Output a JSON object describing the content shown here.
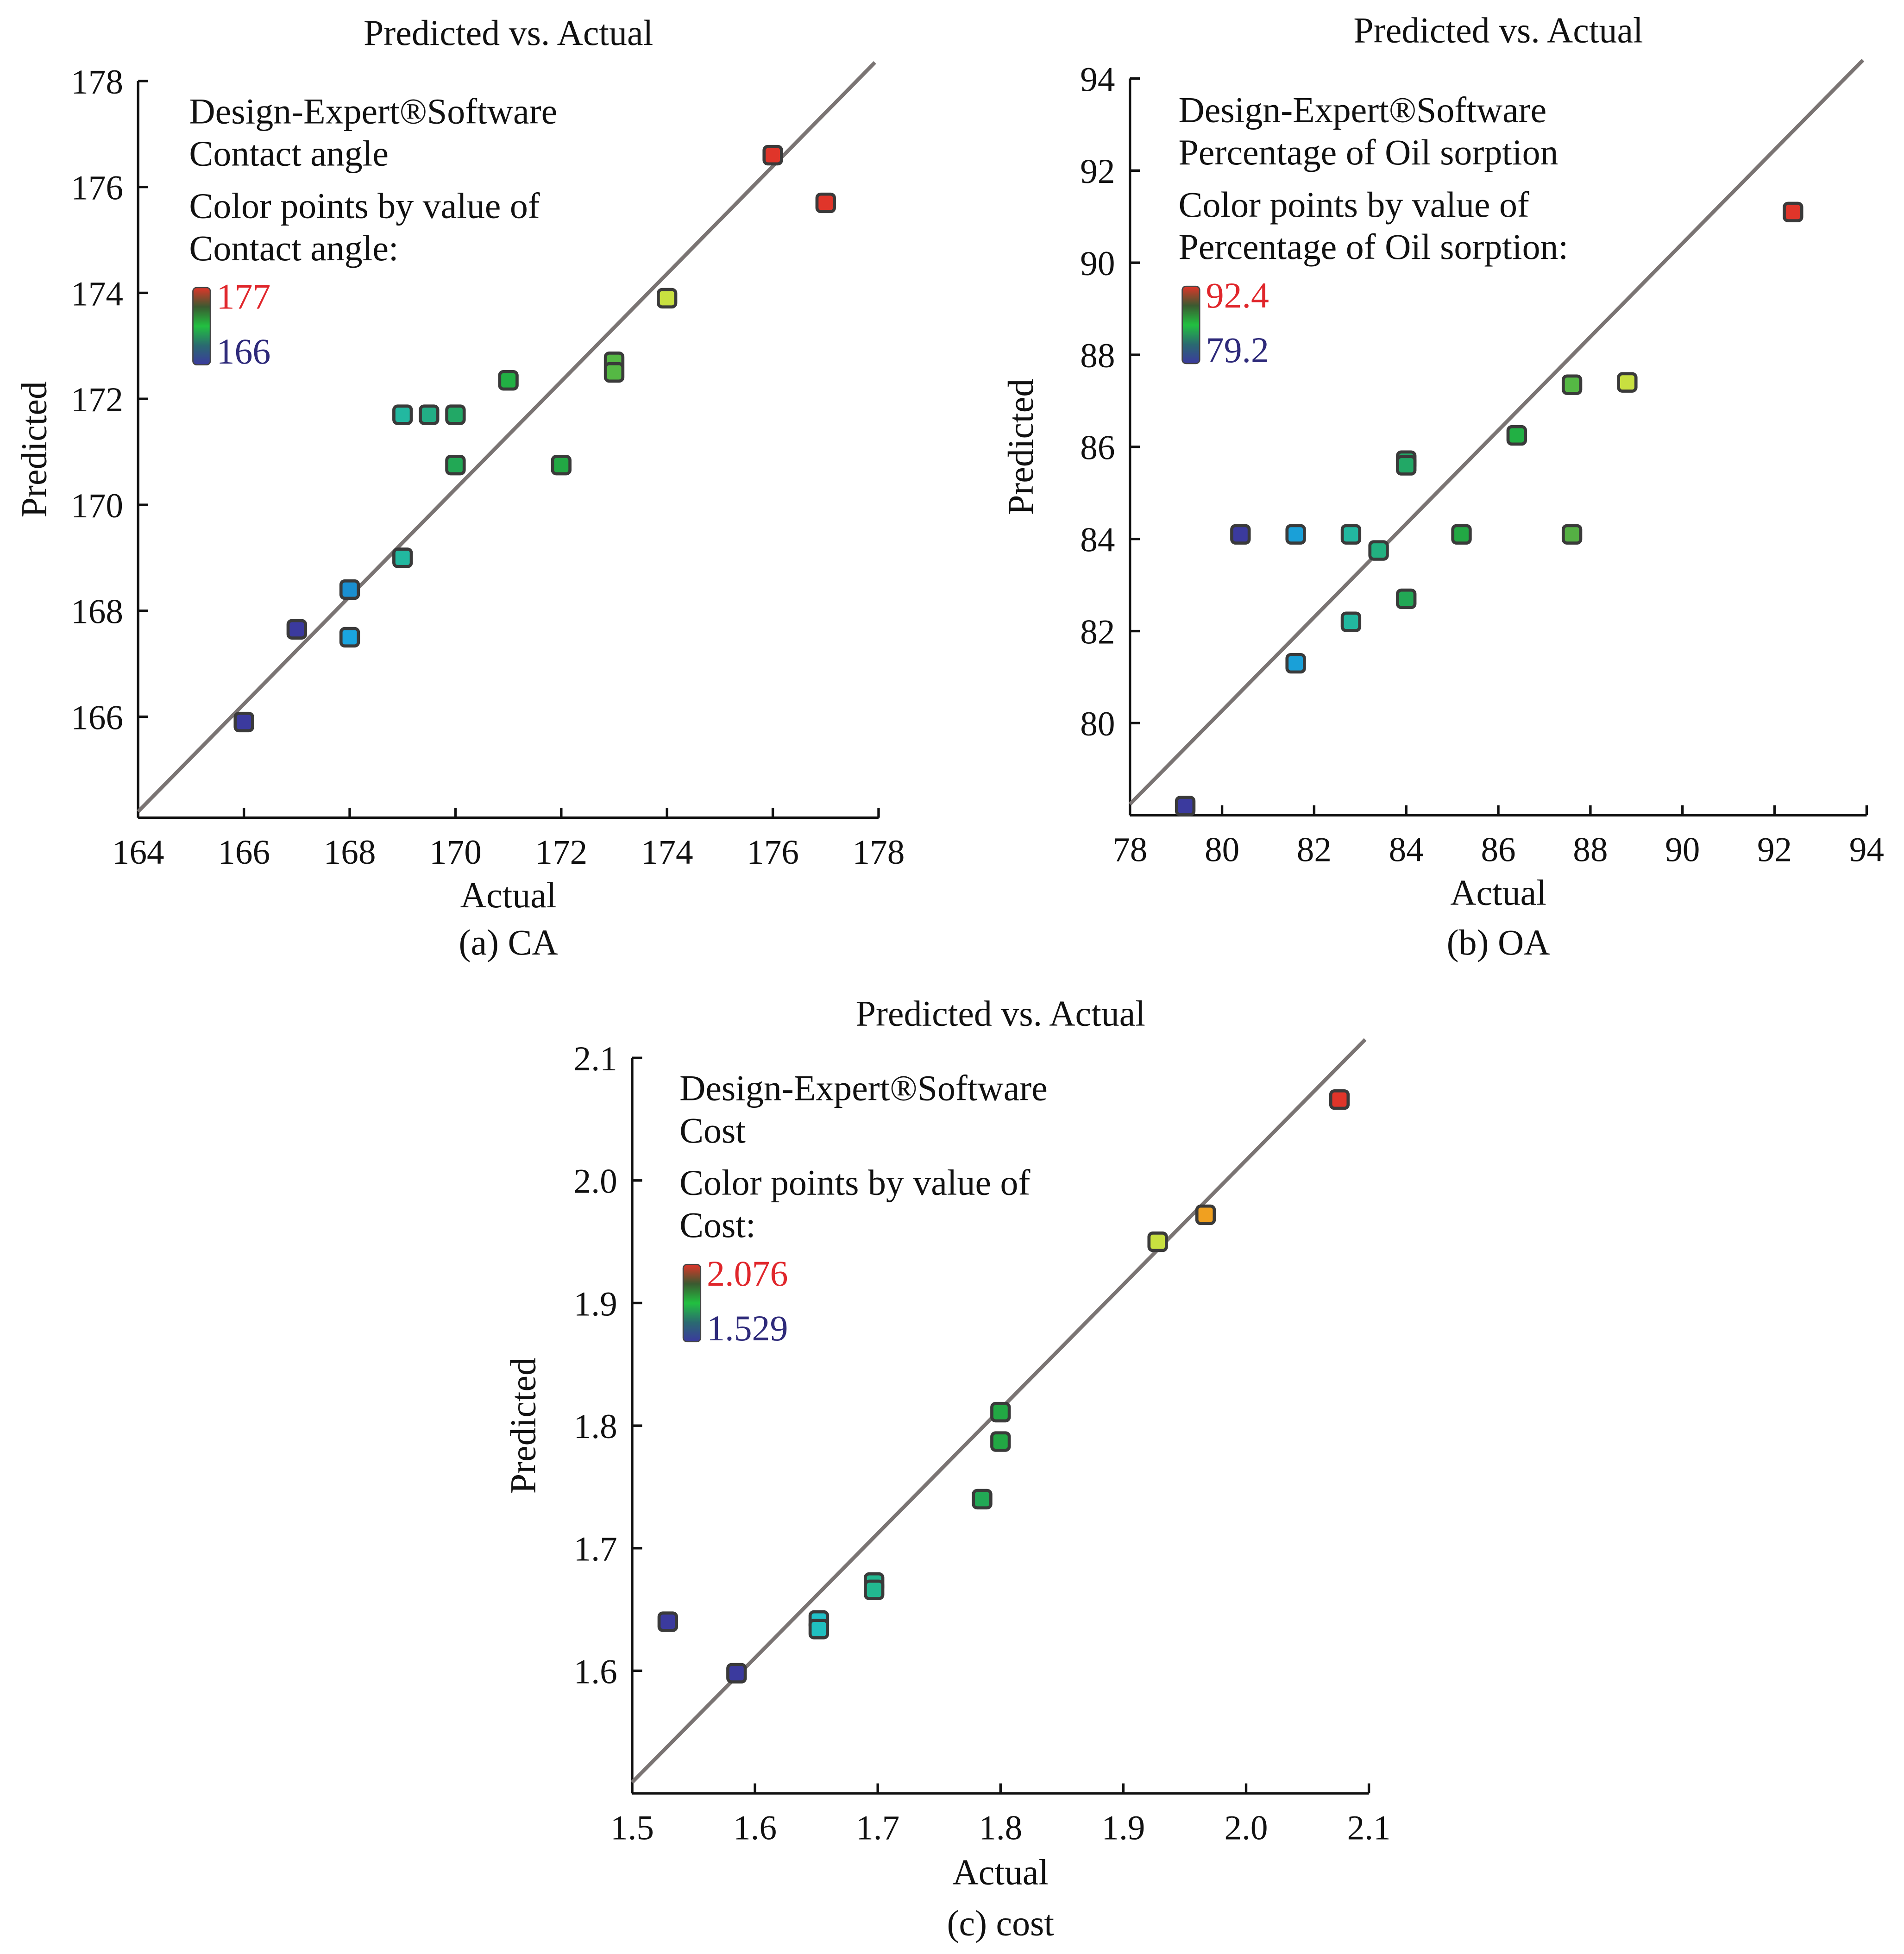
{
  "chart_data": [
    {
      "type": "scatter",
      "title": "Predicted vs. Actual",
      "caption": "(a) CA",
      "xlabel": "Actual",
      "ylabel": "Predicted",
      "xlim": [
        164,
        178
      ],
      "ylim": [
        164,
        178
      ],
      "xticks": [
        "164",
        "166",
        "168",
        "170",
        "172",
        "174",
        "176",
        "178"
      ],
      "yticks": [
        "166",
        "168",
        "170",
        "172",
        "174",
        "176",
        "178"
      ],
      "legend": {
        "lines": [
          "Design-Expert®Software",
          "Contact angle",
          "Color points by value of",
          "Contact angle:"
        ],
        "high": "177",
        "low": "166",
        "high_color": "#e0262b",
        "low_color": "#2e2a7a"
      },
      "points": [
        {
          "x": 166,
          "y": 165.9,
          "color": "#3b3a9e"
        },
        {
          "x": 167,
          "y": 167.65,
          "color": "#3b3a9e"
        },
        {
          "x": 168,
          "y": 168.4,
          "color": "#1a8fd0"
        },
        {
          "x": 168,
          "y": 167.5,
          "color": "#1aa5e0"
        },
        {
          "x": 169,
          "y": 169.0,
          "color": "#22b8a0"
        },
        {
          "x": 169,
          "y": 171.7,
          "color": "#22b8a0"
        },
        {
          "x": 169.5,
          "y": 171.7,
          "color": "#22ad85"
        },
        {
          "x": 170,
          "y": 171.7,
          "color": "#22a866"
        },
        {
          "x": 170,
          "y": 170.75,
          "color": "#22a855"
        },
        {
          "x": 171,
          "y": 172.35,
          "color": "#22b044"
        },
        {
          "x": 172,
          "y": 170.75,
          "color": "#22a844"
        },
        {
          "x": 173,
          "y": 172.7,
          "color": "#55b844"
        },
        {
          "x": 173,
          "y": 172.5,
          "color": "#55b844"
        },
        {
          "x": 174,
          "y": 173.9,
          "color": "#c8e040"
        },
        {
          "x": 176,
          "y": 176.6,
          "color": "#e0352a"
        },
        {
          "x": 177,
          "y": 175.7,
          "color": "#e0352a"
        }
      ]
    },
    {
      "type": "scatter",
      "title": "Predicted vs. Actual",
      "caption": "(b) OA",
      "xlabel": "Actual",
      "ylabel": "Predicted",
      "xlim": [
        78,
        94
      ],
      "ylim": [
        78,
        94
      ],
      "xticks": [
        "78",
        "80",
        "82",
        "84",
        "86",
        "88",
        "90",
        "92",
        "94"
      ],
      "yticks": [
        "80",
        "82",
        "84",
        "86",
        "88",
        "90",
        "92",
        "94"
      ],
      "legend": {
        "lines": [
          "Design-Expert®Software",
          "Percentage of Oil sorption",
          "Color points by value of",
          "Percentage of Oil sorption:"
        ],
        "high": "92.4",
        "low": "79.2",
        "high_color": "#e0262b",
        "low_color": "#2e2a7a"
      },
      "points": [
        {
          "x": 79.2,
          "y": 78.2,
          "color": "#3b3a9e"
        },
        {
          "x": 80.4,
          "y": 84.1,
          "color": "#3b3a9e"
        },
        {
          "x": 81.6,
          "y": 84.1,
          "color": "#1aa0d8"
        },
        {
          "x": 81.6,
          "y": 81.3,
          "color": "#1aa0d8"
        },
        {
          "x": 82.8,
          "y": 84.1,
          "color": "#22b8a0"
        },
        {
          "x": 82.8,
          "y": 82.2,
          "color": "#22b8a0"
        },
        {
          "x": 83.4,
          "y": 83.75,
          "color": "#22b080"
        },
        {
          "x": 84.0,
          "y": 85.7,
          "color": "#22a866"
        },
        {
          "x": 84.0,
          "y": 85.6,
          "color": "#22a866"
        },
        {
          "x": 84.0,
          "y": 82.7,
          "color": "#22a855"
        },
        {
          "x": 85.2,
          "y": 84.1,
          "color": "#22a844"
        },
        {
          "x": 86.4,
          "y": 86.25,
          "color": "#22b044"
        },
        {
          "x": 87.6,
          "y": 87.35,
          "color": "#55b844"
        },
        {
          "x": 87.6,
          "y": 84.1,
          "color": "#55b044"
        },
        {
          "x": 88.8,
          "y": 87.4,
          "color": "#c8e040"
        },
        {
          "x": 92.4,
          "y": 91.1,
          "color": "#e0352a"
        }
      ]
    },
    {
      "type": "scatter",
      "title": "Predicted vs. Actual",
      "caption": "(c) cost",
      "xlabel": "Actual",
      "ylabel": "Predicted",
      "xlim": [
        1.5,
        2.1
      ],
      "ylim": [
        1.5,
        2.1
      ],
      "xticks": [
        "1.5",
        "1.6",
        "1.7",
        "1.8",
        "1.9",
        "2.0",
        "2.1"
      ],
      "yticks": [
        "1.6",
        "1.7",
        "1.8",
        "1.9",
        "2.0",
        "2.1"
      ],
      "legend": {
        "lines": [
          "Design-Expert®Software",
          "Cost",
          "Color points by value of",
          "Cost:"
        ],
        "high": "2.076",
        "low": "1.529",
        "high_color": "#e0262b",
        "low_color": "#2e2a7a"
      },
      "points": [
        {
          "x": 1.529,
          "y": 1.64,
          "color": "#3b3a9e"
        },
        {
          "x": 1.585,
          "y": 1.598,
          "color": "#3b3a9e"
        },
        {
          "x": 1.652,
          "y": 1.641,
          "color": "#20c0c8"
        },
        {
          "x": 1.652,
          "y": 1.634,
          "color": "#20c0c0"
        },
        {
          "x": 1.697,
          "y": 1.672,
          "color": "#22b890"
        },
        {
          "x": 1.697,
          "y": 1.666,
          "color": "#22b890"
        },
        {
          "x": 1.785,
          "y": 1.74,
          "color": "#22a855"
        },
        {
          "x": 1.8,
          "y": 1.811,
          "color": "#22a844"
        },
        {
          "x": 1.8,
          "y": 1.787,
          "color": "#22a844"
        },
        {
          "x": 1.928,
          "y": 1.95,
          "color": "#c8e040"
        },
        {
          "x": 1.967,
          "y": 1.972,
          "color": "#f0a020"
        },
        {
          "x": 2.076,
          "y": 2.066,
          "color": "#e0352a"
        }
      ]
    }
  ]
}
